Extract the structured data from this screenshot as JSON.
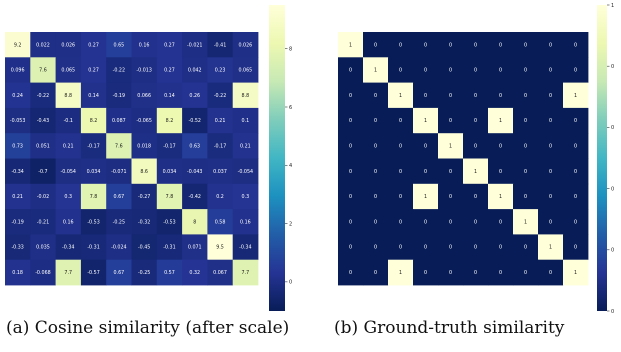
{
  "captions": {
    "a": "(a) Cosine similarity (after scale)",
    "b": "(b) Ground-truth similarity"
  },
  "colormap": [
    "#081d58",
    "#253494",
    "#225ea8",
    "#1d91c0",
    "#41b6c4",
    "#7fcdbb",
    "#c7e9b4",
    "#edf8b1",
    "#ffffd9"
  ],
  "chart_data": [
    {
      "type": "heatmap",
      "rows": 10,
      "cols": 10,
      "vmin": -1,
      "vmax": 9.5,
      "colorbar_ticks": [
        0,
        2,
        4,
        6,
        8
      ],
      "cell_labels": [
        [
          "9.2",
          "0.022",
          "0.026",
          "0.27",
          "0.65",
          "0.16",
          "0.27",
          "-0.021",
          "-0.41",
          "0.026"
        ],
        [
          "0.096",
          "7.6",
          "0.065",
          "0.27",
          "-0.22",
          "-0.013",
          "0.27",
          "0.042",
          "0.23",
          "0.065"
        ],
        [
          "0.24",
          "-0.22",
          "8.8",
          "0.14",
          "-0.19",
          "0.066",
          "0.14",
          "0.26",
          "-0.22",
          "8.8"
        ],
        [
          "-0.053",
          "-0.43",
          "-0.1",
          "8.2",
          "0.087",
          "-0.065",
          "8.2",
          "-0.52",
          "0.21",
          "0.1"
        ],
        [
          "0.73",
          "0.051",
          "0.21",
          "-0.17",
          "7.6",
          "0.018",
          "-0.17",
          "0.63",
          "-0.17",
          "0.21"
        ],
        [
          "-0.34",
          "-0.7",
          "-0.054",
          "0.034",
          "-0.071",
          "8.6",
          "0.034",
          "-0.043",
          "0.037",
          "-0.054"
        ],
        [
          "0.21",
          "-0.02",
          "0.3",
          "7.8",
          "0.67",
          "-0.27",
          "7.8",
          "-0.42",
          "0.2",
          "0.3"
        ],
        [
          "-0.19",
          "-0.21",
          "0.16",
          "-0.53",
          "-0.25",
          "-0.32",
          "-0.53",
          "8",
          "0.58",
          "0.16"
        ],
        [
          "-0.33",
          "0.035",
          "-0.34",
          "-0.31",
          "-0.024",
          "-0.45",
          "-0.31",
          "0.071",
          "9.5",
          "-0.34"
        ],
        [
          "0.18",
          "-0.068",
          "7.7",
          "-0.57",
          "0.67",
          "-0.25",
          "0.57",
          "0.32",
          "0.067",
          "7.7"
        ]
      ]
    },
    {
      "type": "heatmap",
      "rows": 10,
      "cols": 10,
      "vmin": 0,
      "vmax": 1,
      "colorbar_ticks": [
        0,
        0.2,
        0.4,
        0.6,
        0.8,
        1
      ],
      "colorbar_tick_labels": [
        "0",
        "0",
        "0",
        "0",
        "0",
        "1"
      ],
      "cell_labels": [
        [
          "1",
          "0",
          "0",
          "0",
          "0",
          "0",
          "0",
          "0",
          "0",
          "0"
        ],
        [
          "0",
          "1",
          "0",
          "0",
          "0",
          "0",
          "0",
          "0",
          "0",
          "0"
        ],
        [
          "0",
          "0",
          "1",
          "0",
          "0",
          "0",
          "0",
          "0",
          "0",
          "1"
        ],
        [
          "0",
          "0",
          "0",
          "1",
          "0",
          "0",
          "1",
          "0",
          "0",
          "0"
        ],
        [
          "0",
          "0",
          "0",
          "0",
          "1",
          "0",
          "0",
          "0",
          "0",
          "0"
        ],
        [
          "0",
          "0",
          "0",
          "0",
          "0",
          "1",
          "0",
          "0",
          "0",
          "0"
        ],
        [
          "0",
          "0",
          "0",
          "1",
          "0",
          "0",
          "1",
          "0",
          "0",
          "0"
        ],
        [
          "0",
          "0",
          "0",
          "0",
          "0",
          "0",
          "0",
          "1",
          "0",
          "0"
        ],
        [
          "0",
          "0",
          "0",
          "0",
          "0",
          "0",
          "0",
          "0",
          "1",
          "0"
        ],
        [
          "0",
          "0",
          "1",
          "0",
          "0",
          "0",
          "0",
          "0",
          "0",
          "1"
        ]
      ]
    }
  ]
}
